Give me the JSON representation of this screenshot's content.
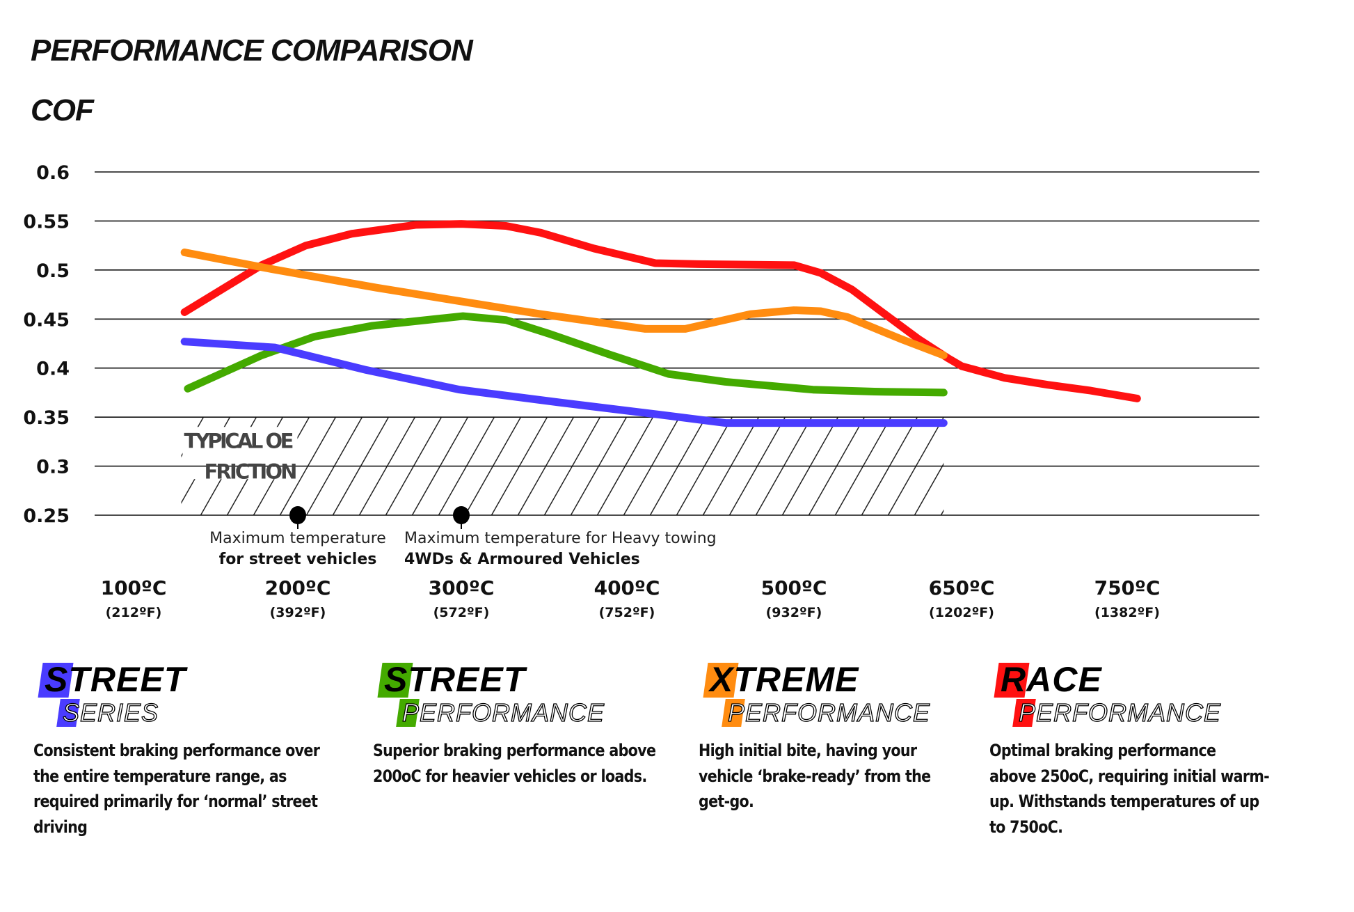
{
  "title": "PERFORMANCE COMPARISON",
  "subtitle": "COF",
  "chart_data": {
    "type": "line",
    "ylabel": "COF",
    "ylim": [
      0.25,
      0.6
    ],
    "yticks": [
      "0.6",
      "0.55",
      "0.5",
      "0.45",
      "0.4",
      "0.35",
      "0.3",
      "0.25"
    ],
    "grid": true,
    "x_ticks": [
      {
        "c": 100,
        "label": "100ºC",
        "sub": "(212ºF)"
      },
      {
        "c": 200,
        "label": "200ºC",
        "sub": "(392ºF)"
      },
      {
        "c": 300,
        "label": "300ºC",
        "sub": "(572ºF)"
      },
      {
        "c": 400,
        "label": "400ºC",
        "sub": "(752ºF)"
      },
      {
        "c": 500,
        "label": "500ºC",
        "sub": "(932ºF)"
      },
      {
        "c": 650,
        "label": "650ºC",
        "sub": "(1202ºF)"
      },
      {
        "c": 750,
        "label": "750ºC",
        "sub": "(1382ºF)"
      }
    ],
    "series": [
      {
        "color": "#ff1111",
        "points": [
          [
            131,
            0.457
          ],
          [
            178,
            0.505
          ],
          [
            205,
            0.525
          ],
          [
            233,
            0.537
          ],
          [
            272,
            0.546
          ],
          [
            300,
            0.547
          ],
          [
            327,
            0.545
          ],
          [
            348,
            0.538
          ],
          [
            380,
            0.522
          ],
          [
            417,
            0.507
          ],
          [
            443,
            0.506
          ],
          [
            500,
            0.505
          ],
          [
            524,
            0.497
          ],
          [
            552,
            0.48
          ],
          [
            579,
            0.457
          ],
          [
            611,
            0.43
          ],
          [
            638,
            0.41
          ],
          [
            650,
            0.402
          ],
          [
            676,
            0.39
          ],
          [
            702,
            0.383
          ],
          [
            728,
            0.377
          ],
          [
            756,
            0.369
          ]
        ]
      },
      {
        "color": "#ff8c10",
        "points": [
          [
            131,
            0.518
          ],
          [
            184,
            0.501
          ],
          [
            248,
            0.482
          ],
          [
            300,
            0.468
          ],
          [
            348,
            0.455
          ],
          [
            411,
            0.44
          ],
          [
            435,
            0.44
          ],
          [
            474,
            0.455
          ],
          [
            500,
            0.459
          ],
          [
            524,
            0.458
          ],
          [
            548,
            0.452
          ],
          [
            595,
            0.43
          ],
          [
            634,
            0.413
          ]
        ]
      },
      {
        "color": "#44aa00",
        "points": [
          [
            133,
            0.379
          ],
          [
            178,
            0.413
          ],
          [
            210,
            0.432
          ],
          [
            245,
            0.443
          ],
          [
            301,
            0.453
          ],
          [
            327,
            0.449
          ],
          [
            353,
            0.435
          ],
          [
            391,
            0.413
          ],
          [
            425,
            0.394
          ],
          [
            459,
            0.386
          ],
          [
            517,
            0.378
          ],
          [
            572,
            0.376
          ],
          [
            634,
            0.375
          ]
        ]
      },
      {
        "color": "#4a3cff",
        "points": [
          [
            131,
            0.427
          ],
          [
            186,
            0.421
          ],
          [
            242,
            0.398
          ],
          [
            299,
            0.378
          ],
          [
            359,
            0.365
          ],
          [
            422,
            0.352
          ],
          [
            459,
            0.344
          ],
          [
            634,
            0.344
          ]
        ]
      }
    ],
    "shaded_region": {
      "label_line1": "TYPICAL OE",
      "label_line2": "FRICTION",
      "x_range": [
        129,
        634
      ],
      "y_range": [
        0.25,
        0.35
      ]
    },
    "markers": [
      {
        "x": 200,
        "y": 0.25,
        "line1": "Maximum temperature",
        "line2": "for street vehicles"
      },
      {
        "x": 300,
        "y": 0.25,
        "line1": "Maximum temperature for Heavy towing",
        "line2": "4WDs & Armoured Vehicles"
      }
    ]
  },
  "products": [
    {
      "big_first": "S",
      "big_rest": "TREET",
      "small_first": "S",
      "small_rest": "ERIES",
      "color": "#4a3cff",
      "desc": [
        "Consistent braking performance over",
        "the entire temperature range, as",
        "required primarily for ‘normal’ street",
        "driving"
      ]
    },
    {
      "big_first": "S",
      "big_rest": "TREET",
      "small_first": "P",
      "small_rest": "ERFORMANCE",
      "color": "#44aa00",
      "desc": [
        "Superior braking performance above",
        "200oC for heavier vehicles or loads."
      ]
    },
    {
      "big_first": "X",
      "big_rest": "TREME",
      "small_first": "P",
      "small_rest": "ERFORMANCE",
      "color": "#ff8c10",
      "desc": [
        "High initial bite, having your",
        "vehicle ‘brake-ready’ from the",
        "get-go."
      ]
    },
    {
      "big_first": "R",
      "big_rest": "ACE",
      "small_first": "P",
      "small_rest": "ERFORMANCE",
      "color": "#ff1111",
      "desc": [
        "Optimal braking performance",
        "above 250oC, requiring initial warm-",
        "up. Withstands temperatures of up",
        "to 750oC."
      ]
    }
  ]
}
